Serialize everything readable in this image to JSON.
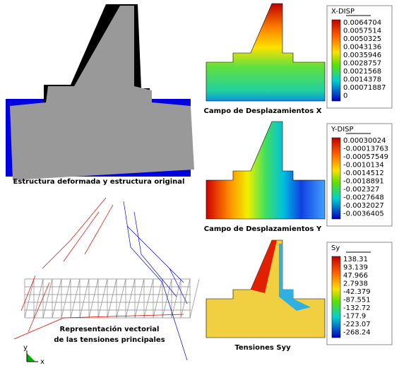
{
  "left": {
    "deformed_caption": "Estructura deformada y estructura original",
    "vector_caption_lines": [
      "Representación vectorial",
      "de las tensiones principales"
    ],
    "axis_labels": [
      "y",
      "x"
    ]
  },
  "right": [
    {
      "caption": "Campo de Desplazamientos X",
      "legend": {
        "title": "X-DISP",
        "values": [
          "0.0064704",
          "0.0057514",
          "0.0050325",
          "0.0043136",
          "0.0035946",
          "0.0028757",
          "0.0021568",
          "0.0014378",
          "0.00071887",
          "0"
        ]
      }
    },
    {
      "caption": "Campo de Desplazamientos Y",
      "legend": {
        "title": "Y-DISP",
        "values": [
          "0.00030024",
          "-0.00013763",
          "-0.00057549",
          "-0.0010134",
          "-0.0014512",
          "-0.0018891",
          "-0.002327",
          "-0.0027648",
          "-0.0032027",
          "-0.0036405"
        ]
      }
    },
    {
      "caption": "Tensiones Syy",
      "legend": {
        "title": "Sy",
        "values": [
          "138.31",
          "93.139",
          "47.966",
          "2.7938",
          "-42.379",
          "-87.551",
          "-132.72",
          "-177.9",
          "-223.07",
          "-268.24"
        ]
      }
    }
  ]
}
